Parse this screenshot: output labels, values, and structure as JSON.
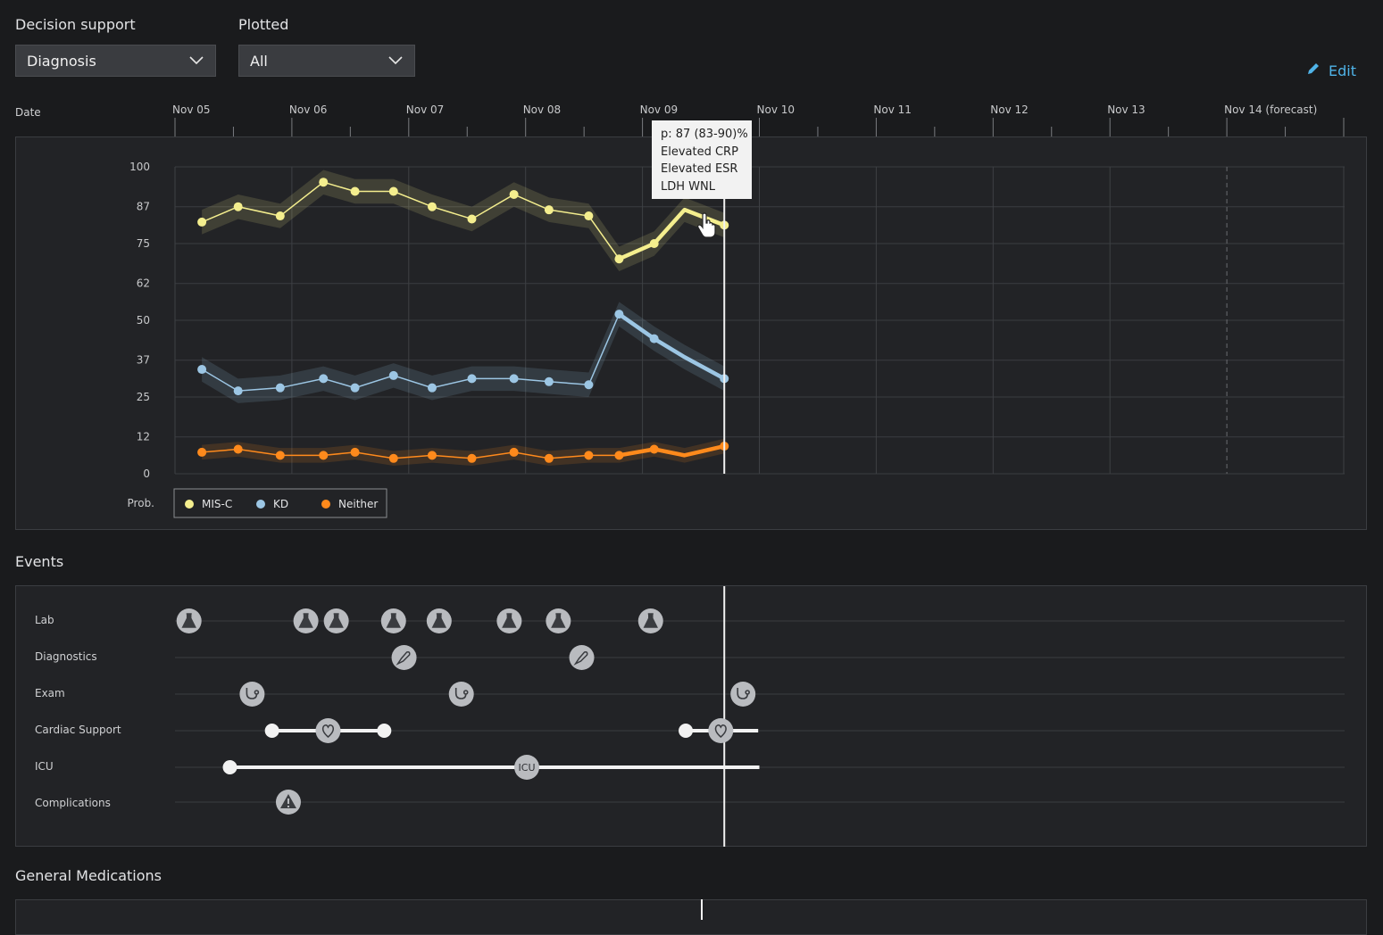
{
  "controls": {
    "decision_support_label": "Decision support",
    "decision_support_value": "Diagnosis",
    "plotted_label": "Plotted",
    "plotted_value": "All",
    "edit_label": "Edit"
  },
  "timeline": {
    "date_label": "Date",
    "dates": [
      "Nov 05",
      "Nov 06",
      "Nov 07",
      "Nov 08",
      "Nov 09",
      "Nov 10",
      "Nov 11",
      "Nov 12",
      "Nov 13",
      "Nov 14 (forecast)"
    ]
  },
  "chart_data": {
    "type": "line",
    "title": "",
    "xlabel": "Date",
    "ylabel": "Prob.",
    "ylim": [
      0,
      100
    ],
    "yticks": [
      0,
      12,
      25,
      37,
      50,
      62,
      75,
      87,
      100
    ],
    "x_days": [
      0.23,
      0.54,
      0.9,
      1.27,
      1.54,
      1.87,
      2.2,
      2.54,
      2.9,
      3.2,
      3.54,
      3.8,
      4.1,
      4.36,
      4.7,
      4.94
    ],
    "hover_x_day": 4.7,
    "series": [
      {
        "name": "MIS-C",
        "color": "#f4ee8e",
        "values": [
          82,
          87,
          84,
          95,
          92,
          92,
          87,
          83,
          91,
          86,
          84,
          70,
          75,
          86,
          81,
          null
        ]
      },
      {
        "name": "KD",
        "color": "#9cc6e4",
        "values": [
          34,
          27,
          28,
          31,
          28,
          32,
          28,
          31,
          31,
          30,
          29,
          52,
          44,
          38,
          31,
          null
        ]
      },
      {
        "name": "Neither",
        "color": "#ff8a1c",
        "values": [
          7,
          8,
          6,
          6,
          7,
          5,
          6,
          5,
          7,
          5,
          6,
          6,
          8,
          6,
          9,
          null
        ]
      }
    ],
    "tooltip": {
      "line1": "p: 87 (83-90)%",
      "line2": "Elevated CRP",
      "line3": "Elevated ESR",
      "line4": "LDH WNL"
    },
    "legend_title": "Prob."
  },
  "events": {
    "title": "Events",
    "rows": [
      "Lab",
      "Diagnostics",
      "Exam",
      "Cardiac Support",
      "ICU",
      "Complications"
    ],
    "icu_label": "ICU",
    "lab_days": [
      0.12,
      1.12,
      1.38,
      1.87,
      2.26,
      2.86,
      3.28,
      4.07
    ],
    "diagnostics_days": [
      1.96,
      3.48
    ],
    "exam_days": [
      0.66,
      2.45,
      4.86
    ],
    "complication_days": [
      0.97
    ]
  },
  "general_medications": {
    "title": "General Medications"
  },
  "colors": {
    "accent": "#4fb3e8",
    "misc": "#f4ee8e",
    "kd": "#9cc6e4",
    "neither": "#ff8a1c"
  }
}
